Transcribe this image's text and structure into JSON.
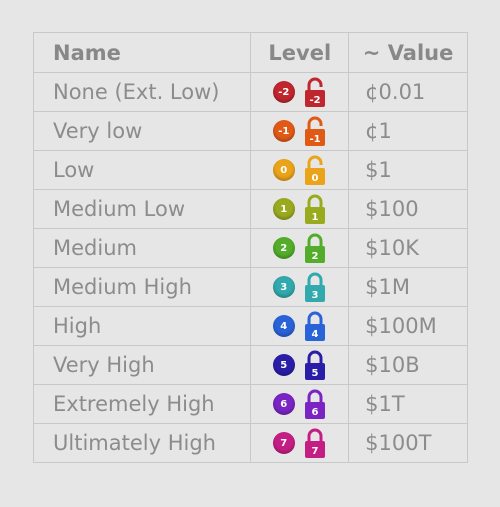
{
  "headers": {
    "name": "Name",
    "level": "Level",
    "value": "~ Value"
  },
  "rows": [
    {
      "name": "None (Ext. Low)",
      "level": "-2",
      "value": "¢0.01",
      "color": "#c0262d",
      "lock": "open"
    },
    {
      "name": "Very low",
      "level": "-1",
      "value": "¢1",
      "color": "#e05a16",
      "lock": "open"
    },
    {
      "name": "Low",
      "level": "0",
      "value": "$1",
      "color": "#eba319",
      "lock": "open"
    },
    {
      "name": "Medium Low",
      "level": "1",
      "value": "$100",
      "color": "#9aaa1e",
      "lock": "closed"
    },
    {
      "name": "Medium",
      "level": "2",
      "value": "$10K",
      "color": "#54ad2a",
      "lock": "closed"
    },
    {
      "name": "Medium High",
      "level": "3",
      "value": "$1M",
      "color": "#32a9ad",
      "lock": "closed"
    },
    {
      "name": "High",
      "level": "4",
      "value": "$100M",
      "color": "#2a63d8",
      "lock": "closed"
    },
    {
      "name": "Very High",
      "level": "5",
      "value": "$10B",
      "color": "#2a1ea8",
      "lock": "closed"
    },
    {
      "name": "Extremely High",
      "level": "6",
      "value": "$1T",
      "color": "#7a24c4",
      "lock": "closed"
    },
    {
      "name": "Ultimately High",
      "level": "7",
      "value": "$100T",
      "color": "#c41e84",
      "lock": "closed"
    }
  ]
}
